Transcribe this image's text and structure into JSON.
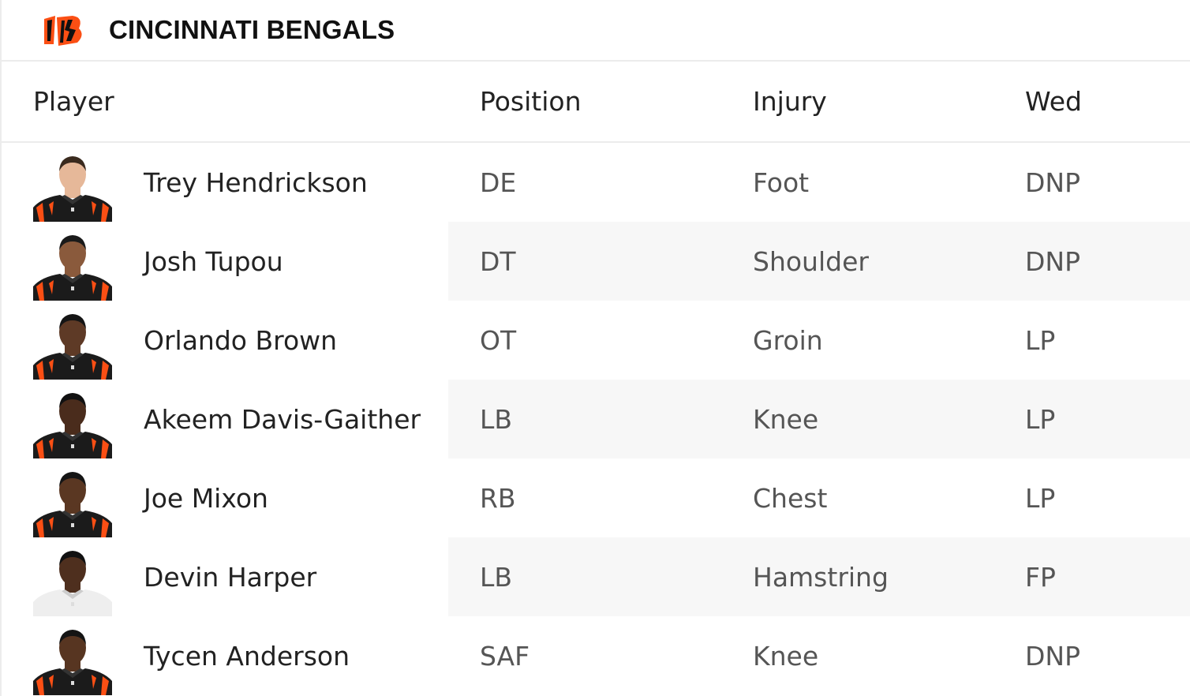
{
  "team": {
    "name": "CINCINNATI BENGALS",
    "colors": {
      "orange": "#fb4f14",
      "black": "#111111"
    }
  },
  "columns": [
    "Player",
    "Position",
    "Injury",
    "Wed"
  ],
  "players": [
    {
      "name": "Trey Hendrickson",
      "position": "DE",
      "injury": "Foot",
      "wed": "DNP",
      "skin": "#e6b899",
      "hair": "#3a2a1e",
      "jersey": "#1b1b1b"
    },
    {
      "name": "Josh Tupou",
      "position": "DT",
      "injury": "Shoulder",
      "wed": "DNP",
      "skin": "#8a5a3c",
      "hair": "#1a1a1a",
      "jersey": "#1b1b1b"
    },
    {
      "name": "Orlando Brown",
      "position": "OT",
      "injury": "Groin",
      "wed": "LP",
      "skin": "#5e3a26",
      "hair": "#151515",
      "jersey": "#1b1b1b"
    },
    {
      "name": "Akeem Davis-Gaither",
      "position": "LB",
      "injury": "Knee",
      "wed": "LP",
      "skin": "#4a2c1c",
      "hair": "#111111",
      "jersey": "#1b1b1b"
    },
    {
      "name": "Joe Mixon",
      "position": "RB",
      "injury": "Chest",
      "wed": "LP",
      "skin": "#5a3722",
      "hair": "#151515",
      "jersey": "#1b1b1b"
    },
    {
      "name": "Devin Harper",
      "position": "LB",
      "injury": "Hamstring",
      "wed": "FP",
      "skin": "#4e2f1e",
      "hair": "#111111",
      "jersey": "#eeeeee"
    },
    {
      "name": "Tycen Anderson",
      "position": "SAF",
      "injury": "Knee",
      "wed": "DNP",
      "skin": "#573521",
      "hair": "#141414",
      "jersey": "#1b1b1b"
    }
  ]
}
